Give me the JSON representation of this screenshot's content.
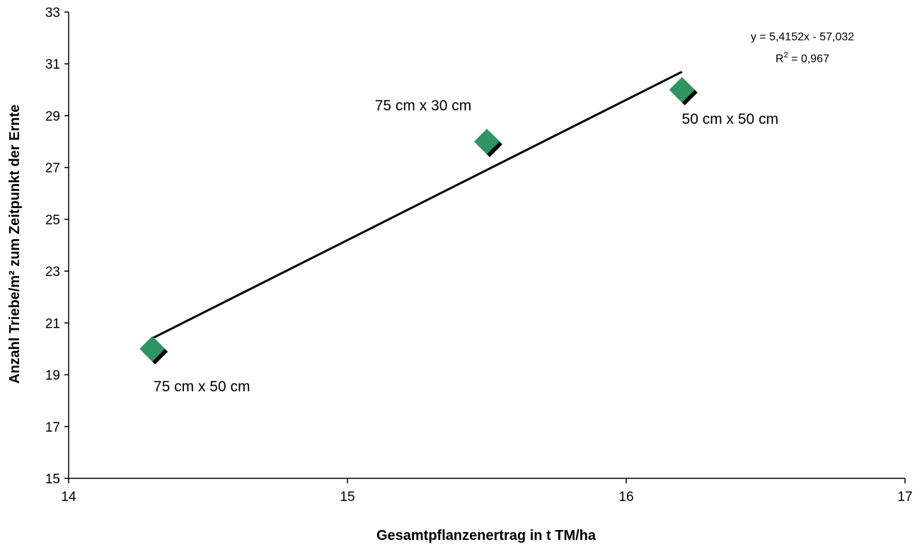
{
  "chart_data": {
    "type": "scatter",
    "xlabel": "Gesamtpflanzenertrag in t TM/ha",
    "ylabel": "Anzahl Triebe/m² zum Zeitpunkt der Ernte",
    "xlim": [
      14,
      17
    ],
    "ylim": [
      15,
      33
    ],
    "x_ticks": [
      "14",
      "15",
      "16",
      "17"
    ],
    "y_ticks": [
      "15",
      "17",
      "19",
      "21",
      "23",
      "25",
      "27",
      "29",
      "31",
      "33"
    ],
    "grid": false,
    "points": [
      {
        "x": 14.3,
        "y": 20,
        "label": "75 cm x 50 cm"
      },
      {
        "x": 15.5,
        "y": 28,
        "label": "75 cm x 30 cm"
      },
      {
        "x": 16.2,
        "y": 30,
        "label": "50 cm x 50 cm"
      }
    ],
    "trendline": {
      "type": "linear",
      "slope": 5.4152,
      "intercept": -57.032,
      "x_range": [
        14.3,
        16.2
      ],
      "equation": "y = 5,4152x - 57,032",
      "r2_prefix": "R",
      "r2_sup": "2",
      "r2_value": " = 0,967"
    },
    "colors": {
      "marker": "#2e9560",
      "marker_shadow": "#000000",
      "line": "#000000"
    }
  }
}
